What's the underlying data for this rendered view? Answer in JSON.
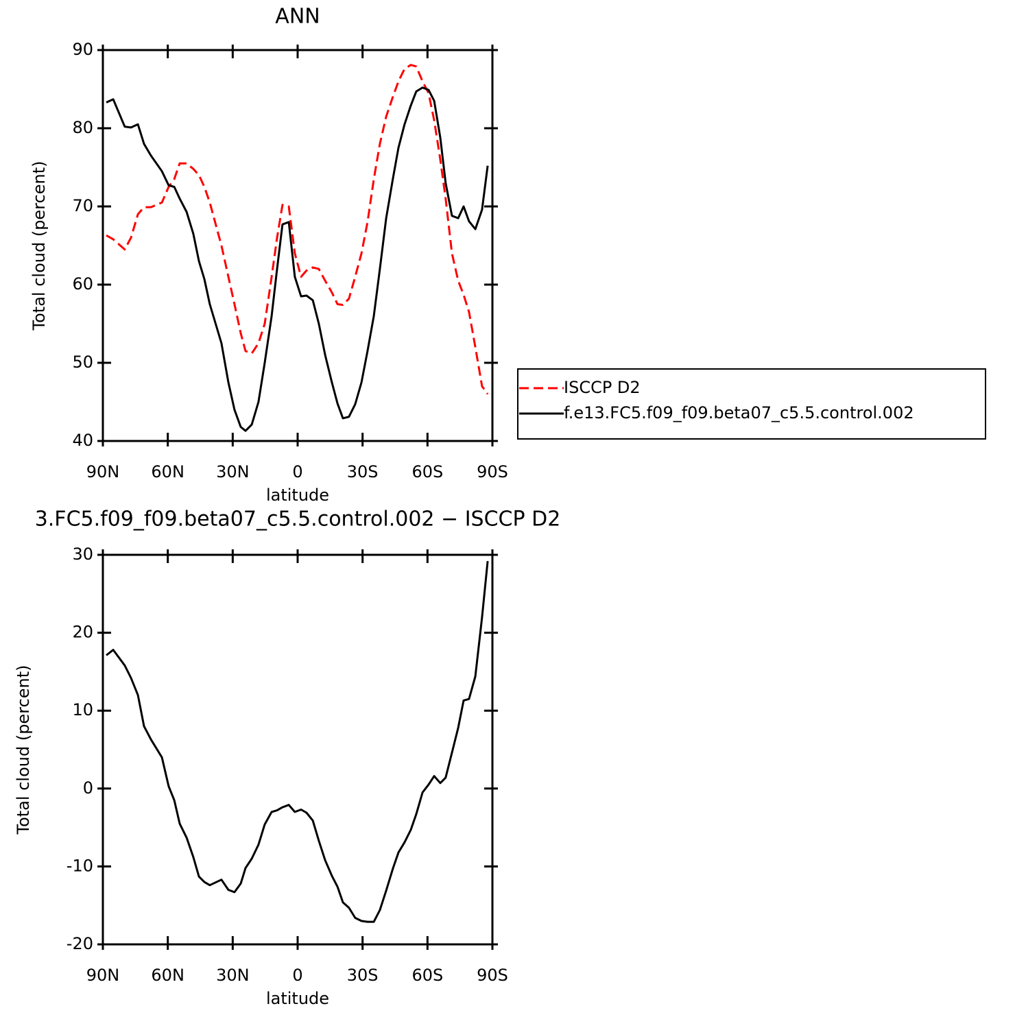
{
  "chart_data": [
    {
      "type": "line",
      "title": "ANN",
      "xlabel": "latitude",
      "ylabel": "Total cloud (percent)",
      "xlim": [
        90,
        -90
      ],
      "ylim": [
        40,
        90
      ],
      "xticks": [
        {
          "value": 90,
          "label": "90N"
        },
        {
          "value": 60,
          "label": "60N"
        },
        {
          "value": 30,
          "label": "30N"
        },
        0,
        {
          "value": -30,
          "label": "30S"
        },
        {
          "value": -60,
          "label": "60S"
        },
        {
          "value": -90,
          "label": "90S"
        }
      ],
      "yticks": [
        40,
        50,
        60,
        70,
        80,
        90
      ],
      "legend": "right",
      "x": [
        88.4,
        85.2,
        79.9,
        77.0,
        73.8,
        71.0,
        67.8,
        62.7,
        59.6,
        57.0,
        54.5,
        51.3,
        48.2,
        45.6,
        43.1,
        40.6,
        35.2,
        32.0,
        29.2,
        26.3,
        24.1,
        21.2,
        18.1,
        15.2,
        12.0,
        9.5,
        7.0,
        4.1,
        1.3,
        -1.6,
        -4.1,
        -7.0,
        -9.8,
        -12.7,
        -15.8,
        -18.4,
        -20.9,
        -23.7,
        -26.6,
        -29.5,
        -32.3,
        -35.2,
        -38.0,
        -40.9,
        -44.0,
        -46.6,
        -49.4,
        -52.3,
        -54.8,
        -57.7,
        -60.5,
        -63.1,
        -65.9,
        -68.4,
        -71.3,
        -74.2,
        -76.7,
        -79.2,
        -82.1,
        -85.2,
        -87.8
      ],
      "series": [
        {
          "name": "ISCCP D2",
          "color": "#ff0000",
          "dash": "dashed",
          "values": [
            66.3,
            65.8,
            64.5,
            66,
            69,
            69.9,
            69.9,
            70.5,
            72.5,
            73.5,
            75.5,
            75.5,
            74.8,
            74,
            72.5,
            70.5,
            65,
            61,
            57.5,
            53.8,
            51.5,
            51.2,
            52.5,
            55,
            61,
            66,
            70.2,
            70,
            64,
            61,
            61.8,
            62.2,
            62,
            60.5,
            59,
            57.5,
            57.4,
            58.2,
            61,
            64,
            68,
            73.5,
            78,
            81.5,
            84,
            86,
            87.6,
            88.1,
            87.9,
            86,
            84.5,
            81,
            76,
            71,
            64,
            60.5,
            58.7,
            56.5,
            52,
            47,
            46
          ]
        },
        {
          "name": "f.e13.FC5.f09_f09.beta07_c5.5.control.002",
          "color": "#000000",
          "dash": "solid",
          "values": [
            83.3,
            83.7,
            80.2,
            80.1,
            80.5,
            78,
            76.5,
            74.5,
            72.7,
            72.5,
            71,
            69.3,
            66.5,
            63,
            60.7,
            57.5,
            52.5,
            47.5,
            44,
            41.8,
            41.3,
            42.1,
            45,
            50,
            56,
            62,
            67.7,
            68,
            61,
            58.5,
            58.6,
            58,
            55,
            51,
            47.5,
            44.8,
            42.9,
            43.1,
            44.7,
            47.5,
            51.5,
            56,
            62,
            68.5,
            73.5,
            77.5,
            80.5,
            82.9,
            84.7,
            85.2,
            84.9,
            83.5,
            78.8,
            73,
            68.8,
            68.5,
            70,
            68.1,
            67.1,
            69.6,
            75.2
          ]
        }
      ]
    },
    {
      "type": "line",
      "title": "3.FC5.f09_f09.beta07_c5.5.control.002 − ISCCP D2",
      "xlabel": "latitude",
      "ylabel": "Total cloud (percent)",
      "xlim": [
        90,
        -90
      ],
      "ylim": [
        -20,
        30
      ],
      "xticks": [
        {
          "value": 90,
          "label": "90N"
        },
        {
          "value": 60,
          "label": "60N"
        },
        {
          "value": 30,
          "label": "30N"
        },
        0,
        {
          "value": -30,
          "label": "30S"
        },
        {
          "value": -60,
          "label": "60S"
        },
        {
          "value": -90,
          "label": "90S"
        }
      ],
      "yticks": [
        -20,
        -10,
        0,
        10,
        20,
        30
      ],
      "x": [
        88.4,
        85.2,
        79.9,
        77.0,
        73.8,
        71.0,
        67.8,
        62.7,
        59.6,
        57.0,
        54.5,
        51.3,
        48.2,
        45.6,
        43.1,
        40.6,
        35.2,
        32.0,
        29.2,
        26.3,
        24.1,
        21.2,
        18.1,
        15.2,
        12.0,
        9.5,
        7.0,
        4.1,
        1.3,
        -1.6,
        -4.1,
        -7.0,
        -9.8,
        -12.7,
        -15.8,
        -18.4,
        -20.9,
        -23.7,
        -26.6,
        -29.5,
        -32.3,
        -35.2,
        -38.0,
        -40.9,
        -44.0,
        -46.6,
        -49.4,
        -52.3,
        -54.8,
        -57.7,
        -60.5,
        -63.1,
        -65.9,
        -68.4,
        -71.3,
        -74.2,
        -76.7,
        -79.2,
        -82.1,
        -85.2,
        -87.8
      ],
      "series": [
        {
          "color": "#000000",
          "dash": "solid",
          "values": [
            17.1,
            17.8,
            15.8,
            14.2,
            12,
            8,
            6.3,
            4,
            0.3,
            -1.5,
            -4.5,
            -6.3,
            -8.8,
            -11.3,
            -12,
            -12.4,
            -11.7,
            -13,
            -13.3,
            -12.2,
            -10.2,
            -9,
            -7.2,
            -4.6,
            -3,
            -2.8,
            -2.4,
            -2.1,
            -3,
            -2.7,
            -3.1,
            -4.1,
            -6.7,
            -9.2,
            -11.2,
            -12.6,
            -14.6,
            -15.3,
            -16.6,
            -17,
            -17.1,
            -17.1,
            -15.6,
            -13.1,
            -10.3,
            -8.2,
            -6.9,
            -5.3,
            -3.3,
            -0.5,
            0.5,
            1.6,
            0.7,
            1.4,
            4.6,
            7.8,
            11.3,
            11.5,
            14.4,
            22,
            29.2
          ]
        }
      ]
    }
  ]
}
